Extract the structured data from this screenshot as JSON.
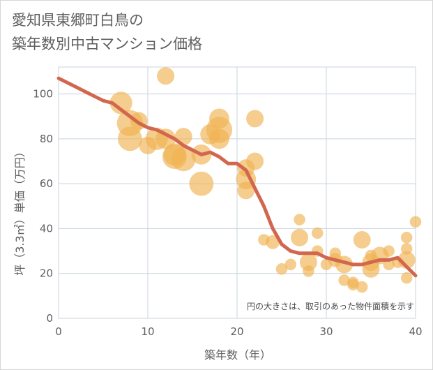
{
  "title": {
    "line1": "愛知県東郷町白鳥の",
    "line2": "築年数別中古マンション価格"
  },
  "chart_data": {
    "type": "scatter",
    "xlabel": "築年数（年）",
    "ylabel": "坪（3.3㎡）単価（万円）",
    "xlim": [
      0,
      40
    ],
    "ylim": [
      0,
      112
    ],
    "xticks": [
      "0",
      "10",
      "20",
      "30",
      "40"
    ],
    "yticks": [
      "0",
      "20",
      "40",
      "60",
      "80",
      "100"
    ],
    "grid": true,
    "note": "円の大きさは、取引のあった物件面積を示す",
    "colors": {
      "bubble": "#f0b252",
      "trend": "#d2674f",
      "grid": "#c8d3de"
    },
    "bubbles": [
      {
        "x": 7,
        "y": 96,
        "s": 4
      },
      {
        "x": 8,
        "y": 87,
        "s": 6
      },
      {
        "x": 8,
        "y": 80,
        "s": 5
      },
      {
        "x": 9,
        "y": 88,
        "s": 2
      },
      {
        "x": 10,
        "y": 77,
        "s": 2
      },
      {
        "x": 11,
        "y": 80,
        "s": 4
      },
      {
        "x": 12,
        "y": 108,
        "s": 2
      },
      {
        "x": 12,
        "y": 80,
        "s": 3
      },
      {
        "x": 13,
        "y": 73,
        "s": 4
      },
      {
        "x": 13,
        "y": 72,
        "s": 5
      },
      {
        "x": 14,
        "y": 81,
        "s": 2
      },
      {
        "x": 14,
        "y": 71,
        "s": 5
      },
      {
        "x": 16,
        "y": 73,
        "s": 3
      },
      {
        "x": 16,
        "y": 60,
        "s": 5
      },
      {
        "x": 17,
        "y": 82,
        "s": 3
      },
      {
        "x": 18,
        "y": 89,
        "s": 3
      },
      {
        "x": 18,
        "y": 84,
        "s": 6
      },
      {
        "x": 18,
        "y": 80,
        "s": 3
      },
      {
        "x": 21,
        "y": 67,
        "s": 2
      },
      {
        "x": 21,
        "y": 62,
        "s": 3
      },
      {
        "x": 21,
        "y": 57,
        "s": 2
      },
      {
        "x": 22,
        "y": 89,
        "s": 2
      },
      {
        "x": 22,
        "y": 70,
        "s": 2
      },
      {
        "x": 23,
        "y": 35,
        "s": 0.5
      },
      {
        "x": 24,
        "y": 34,
        "s": 1
      },
      {
        "x": 25,
        "y": 22,
        "s": 0.5
      },
      {
        "x": 26,
        "y": 24,
        "s": 0.5
      },
      {
        "x": 27,
        "y": 44,
        "s": 0.5
      },
      {
        "x": 27,
        "y": 36,
        "s": 2
      },
      {
        "x": 28,
        "y": 25,
        "s": 2
      },
      {
        "x": 28,
        "y": 21,
        "s": 0.5
      },
      {
        "x": 29,
        "y": 38,
        "s": 0.5
      },
      {
        "x": 29,
        "y": 30,
        "s": 0.5
      },
      {
        "x": 30,
        "y": 24,
        "s": 0.5
      },
      {
        "x": 31,
        "y": 29,
        "s": 0.5
      },
      {
        "x": 31,
        "y": 26,
        "s": 1
      },
      {
        "x": 32,
        "y": 24,
        "s": 2
      },
      {
        "x": 32,
        "y": 17,
        "s": 0.5
      },
      {
        "x": 33,
        "y": 16,
        "s": 0.5
      },
      {
        "x": 33,
        "y": 15,
        "s": 0.5
      },
      {
        "x": 34,
        "y": 35,
        "s": 2
      },
      {
        "x": 34,
        "y": 14,
        "s": 0.5
      },
      {
        "x": 35,
        "y": 28,
        "s": 0.5
      },
      {
        "x": 35,
        "y": 25,
        "s": 2
      },
      {
        "x": 35,
        "y": 22,
        "s": 2
      },
      {
        "x": 36,
        "y": 28,
        "s": 2
      },
      {
        "x": 37,
        "y": 24,
        "s": 0.5
      },
      {
        "x": 37,
        "y": 30,
        "s": 0.5
      },
      {
        "x": 38,
        "y": 25,
        "s": 0.5
      },
      {
        "x": 39,
        "y": 36,
        "s": 0.5
      },
      {
        "x": 39,
        "y": 31,
        "s": 0.5
      },
      {
        "x": 39,
        "y": 26,
        "s": 2
      },
      {
        "x": 39,
        "y": 18,
        "s": 0.5
      },
      {
        "x": 40,
        "y": 43,
        "s": 0.5
      }
    ],
    "series": [
      {
        "x": [
          0,
          1,
          2,
          3,
          4,
          5,
          6,
          7,
          8,
          9,
          10,
          11,
          12,
          13,
          14,
          15,
          16,
          17,
          18,
          19,
          20,
          21,
          22,
          23,
          24,
          25,
          26,
          27,
          28,
          29,
          30,
          31,
          32,
          33,
          34,
          35,
          36,
          37,
          38,
          39,
          40
        ],
        "y": [
          107,
          105,
          103,
          101,
          99,
          97,
          96,
          93,
          90,
          87,
          85,
          84,
          82,
          80,
          77,
          75,
          73,
          74,
          72,
          69,
          69,
          66,
          58,
          50,
          40,
          33,
          30,
          29,
          29,
          29,
          27,
          26,
          25,
          24,
          24,
          25,
          26,
          26,
          27,
          23,
          19
        ]
      }
    ]
  }
}
